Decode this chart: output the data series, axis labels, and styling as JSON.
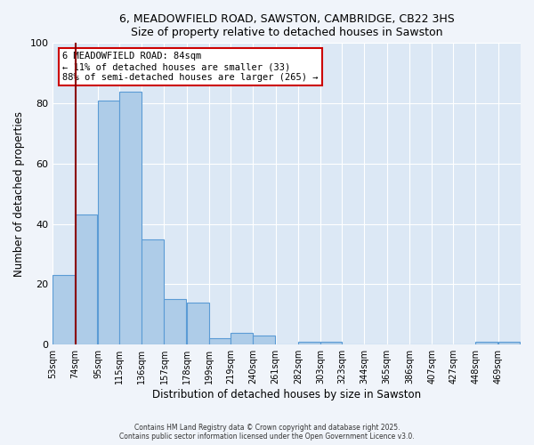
{
  "title": "6, MEADOWFIELD ROAD, SAWSTON, CAMBRIDGE, CB22 3HS",
  "subtitle": "Size of property relative to detached houses in Sawston",
  "xlabel": "Distribution of detached houses by size in Sawston",
  "ylabel": "Number of detached properties",
  "bar_labels": [
    "53sqm",
    "74sqm",
    "95sqm",
    "115sqm",
    "136sqm",
    "157sqm",
    "178sqm",
    "199sqm",
    "219sqm",
    "240sqm",
    "261sqm",
    "282sqm",
    "303sqm",
    "323sqm",
    "344sqm",
    "365sqm",
    "386sqm",
    "407sqm",
    "427sqm",
    "448sqm",
    "469sqm"
  ],
  "bar_values": [
    23,
    43,
    81,
    84,
    35,
    15,
    14,
    2,
    4,
    3,
    0,
    1,
    1,
    0,
    0,
    0,
    0,
    0,
    0,
    1,
    1
  ],
  "bar_color": "#aecce8",
  "bar_edge_color": "#5b9bd5",
  "plot_bg_color": "#dce8f5",
  "fig_bg_color": "#f0f4fa",
  "ylim": [
    0,
    100
  ],
  "vline_color": "#8b0000",
  "annotation_title": "6 MEADOWFIELD ROAD: 84sqm",
  "annotation_line1": "← 11% of detached houses are smaller (33)",
  "annotation_line2": "88% of semi-detached houses are larger (265) →",
  "annotation_box_facecolor": "#ffffff",
  "annotation_box_edgecolor": "#cc0000",
  "footer1": "Contains HM Land Registry data © Crown copyright and database right 2025.",
  "footer2": "Contains public sector information licensed under the Open Government Licence v3.0.",
  "bin_edges": [
    53,
    74,
    95,
    115,
    136,
    157,
    178,
    199,
    219,
    240,
    261,
    282,
    303,
    323,
    344,
    365,
    386,
    407,
    427,
    448,
    469,
    490
  ]
}
